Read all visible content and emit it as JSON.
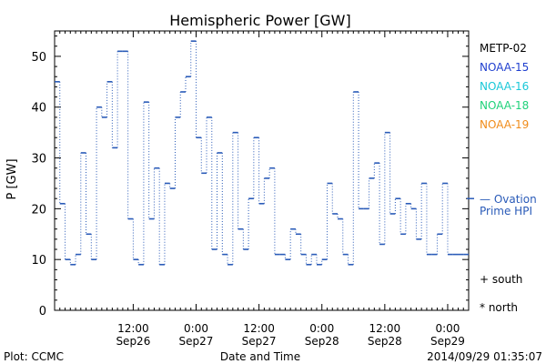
{
  "chart_data": {
    "type": "line",
    "title": "Hemispheric Power [GW]",
    "ylabel": "P [GW]",
    "xlabel": "Date and Time",
    "ylim": [
      0,
      55
    ],
    "yticks": [
      0,
      10,
      20,
      30,
      40,
      50
    ],
    "xlim": [
      0,
      79
    ],
    "x_units": "hours since 2014/09/25 21:00",
    "xticks": [
      {
        "x": 15,
        "line1": "12:00",
        "line2": "Sep26"
      },
      {
        "x": 27,
        "line1": "0:00",
        "line2": "Sep27"
      },
      {
        "x": 39,
        "line1": "12:00",
        "line2": "Sep27"
      },
      {
        "x": 51,
        "line1": "0:00",
        "line2": "Sep28"
      },
      {
        "x": 63,
        "line1": "12:00",
        "line2": "Sep28"
      },
      {
        "x": 75,
        "line1": "0:00",
        "line2": "Sep29"
      }
    ],
    "legend": {
      "position": "right",
      "entries": [
        {
          "name": "METP-02",
          "color": "#000000"
        },
        {
          "name": "NOAA-15",
          "color": "#1f3fcf"
        },
        {
          "name": "NOAA-16",
          "color": "#19c8d8"
        },
        {
          "name": "NOAA-18",
          "color": "#1fd27a"
        },
        {
          "name": "NOAA-19",
          "color": "#f08c1a"
        }
      ]
    },
    "ovation_label": [
      "— Ovation",
      "Prime HPI"
    ],
    "ovation_value": 22,
    "ovation_color": "#2a5bb8",
    "markers": [
      {
        "symbol": "+",
        "label": "south"
      },
      {
        "symbol": "*",
        "label": "north"
      }
    ],
    "series": [
      {
        "color": "#2a5bb8",
        "x": [
          0,
          1,
          2,
          3,
          4,
          5,
          6,
          7,
          8,
          9,
          10,
          11,
          12,
          13,
          14,
          15,
          16,
          17,
          18,
          19,
          20,
          21,
          22,
          23,
          24,
          25,
          26,
          27,
          28,
          29,
          30,
          31,
          32,
          33,
          34,
          35,
          36,
          37,
          38,
          39,
          40,
          41,
          42,
          43,
          44,
          45,
          46,
          47,
          48,
          49,
          50,
          51,
          52,
          53,
          54,
          55,
          56,
          57,
          58,
          59,
          60,
          61,
          62,
          63,
          64,
          65,
          66,
          67,
          68,
          69,
          70,
          71,
          72,
          73,
          74,
          75,
          76,
          77,
          78,
          79
        ],
        "y": [
          45,
          21,
          10,
          9,
          11,
          31,
          15,
          10,
          40,
          38,
          45,
          32,
          51,
          51,
          18,
          10,
          9,
          41,
          18,
          28,
          9,
          25,
          24,
          38,
          43,
          46,
          53,
          34,
          27,
          38,
          12,
          31,
          11,
          9,
          35,
          16,
          12,
          22,
          34,
          21,
          26,
          28,
          11,
          11,
          10,
          16,
          15,
          11,
          9,
          11,
          9,
          10,
          25,
          19,
          18,
          11,
          9,
          43,
          20,
          20,
          26,
          29,
          13,
          35,
          19,
          22,
          15,
          21,
          20,
          14,
          25,
          11,
          11,
          15,
          25,
          11,
          11,
          11,
          11,
          11
        ]
      }
    ]
  },
  "footer": {
    "left": "Plot: CCMC",
    "center": "Date and Time",
    "right": "2014/09/29 01:35:07"
  }
}
